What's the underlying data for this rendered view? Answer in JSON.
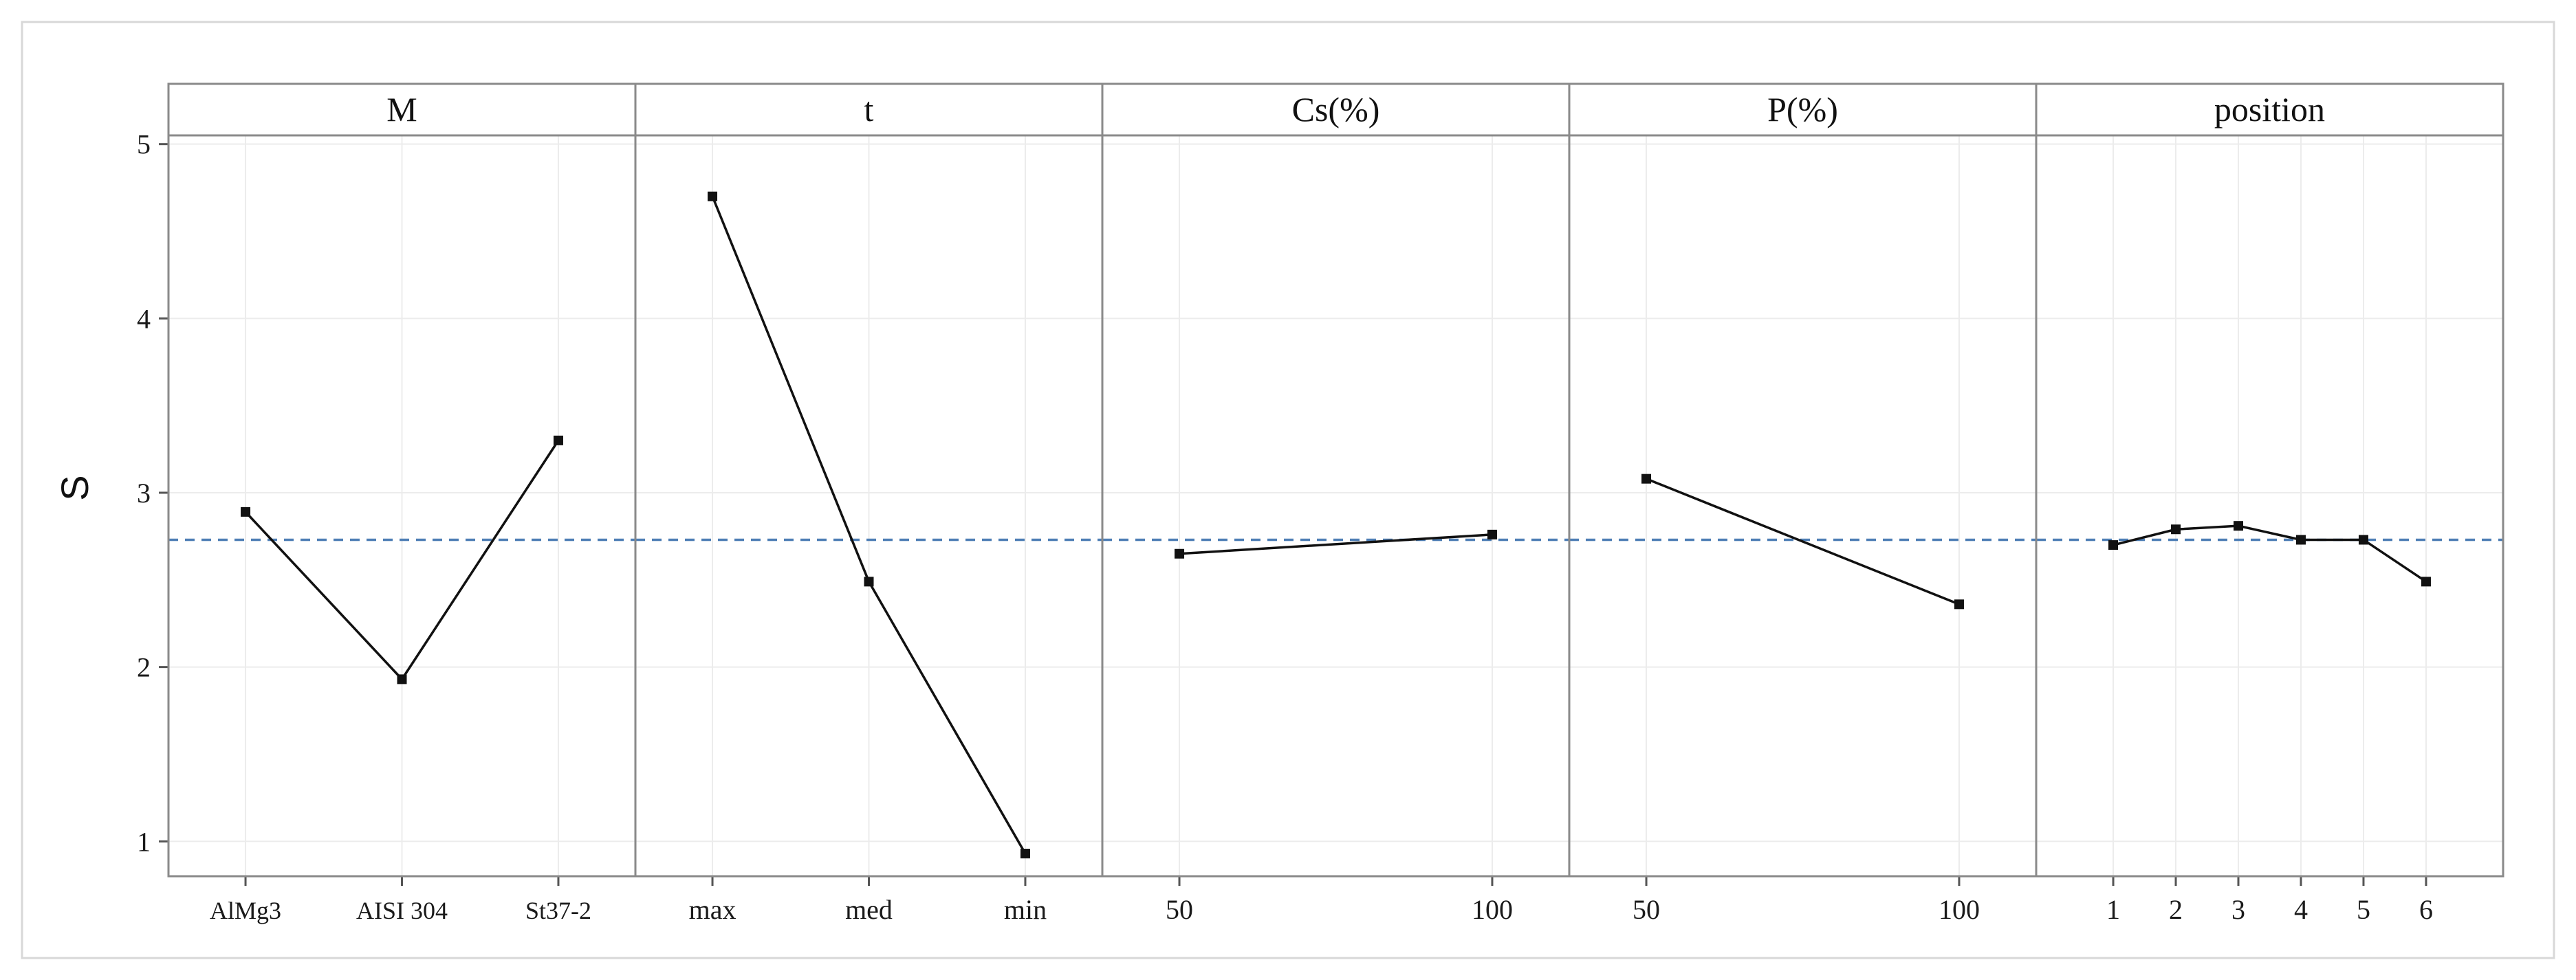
{
  "chart_data": {
    "type": "line",
    "ylabel": "S",
    "ylim": [
      0.8,
      5.05
    ],
    "yticks": [
      1,
      2,
      3,
      4,
      5
    ],
    "reference_line": 2.73,
    "colors": {
      "line": "#111111",
      "reference": "#4f7fb5",
      "panel_border": "#8a8a8a"
    },
    "panels": [
      {
        "title": "M",
        "categories": [
          "AlMg3",
          "AISI 304",
          "St37-2"
        ],
        "values": [
          2.89,
          1.93,
          3.3
        ]
      },
      {
        "title": "t",
        "categories": [
          "max",
          "med",
          "min"
        ],
        "values": [
          4.7,
          2.49,
          0.93
        ]
      },
      {
        "title": "Cs(%)",
        "categories": [
          "50",
          "100"
        ],
        "values": [
          2.65,
          2.76
        ]
      },
      {
        "title": "P(%)",
        "categories": [
          "50",
          "100"
        ],
        "values": [
          3.08,
          2.36
        ]
      },
      {
        "title": "position",
        "categories": [
          "1",
          "2",
          "3",
          "4",
          "5",
          "6"
        ],
        "values": [
          2.7,
          2.79,
          2.81,
          2.73,
          2.73,
          2.49
        ]
      }
    ]
  }
}
